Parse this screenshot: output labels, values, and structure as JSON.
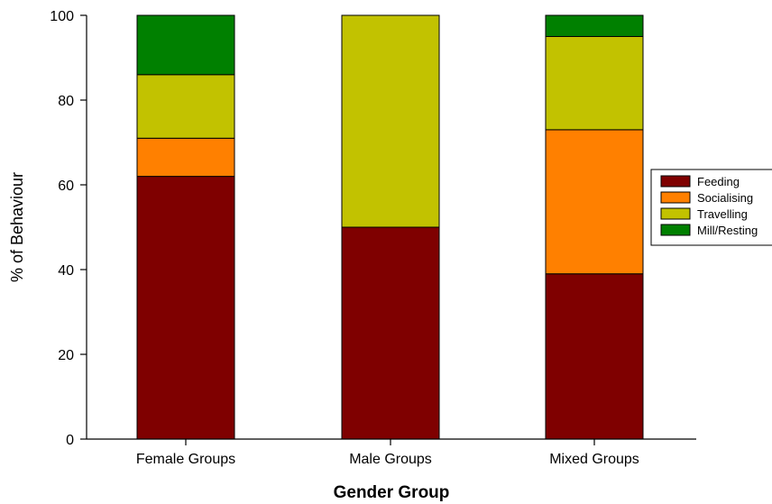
{
  "chart_data": {
    "type": "bar",
    "stacked": true,
    "title": "",
    "xlabel": "Gender Group",
    "ylabel": "% of Behaviour",
    "ylim": [
      0,
      100
    ],
    "yticks": [
      "0",
      "20",
      "40",
      "60",
      "80",
      "100"
    ],
    "grid": false,
    "legend_position": "right",
    "categories": [
      "Female Groups",
      "Male Groups",
      "Mixed Groups"
    ],
    "series": [
      {
        "name": "Feeding",
        "color": "#7f0000",
        "values": [
          62,
          50,
          39
        ]
      },
      {
        "name": "Socialising",
        "color": "#ff8000",
        "values": [
          9,
          0,
          34
        ]
      },
      {
        "name": "Travelling",
        "color": "#c2c200",
        "values": [
          15,
          50,
          22
        ]
      },
      {
        "name": "Mill/Resting",
        "color": "#008000",
        "values": [
          14,
          0,
          5
        ]
      }
    ]
  }
}
